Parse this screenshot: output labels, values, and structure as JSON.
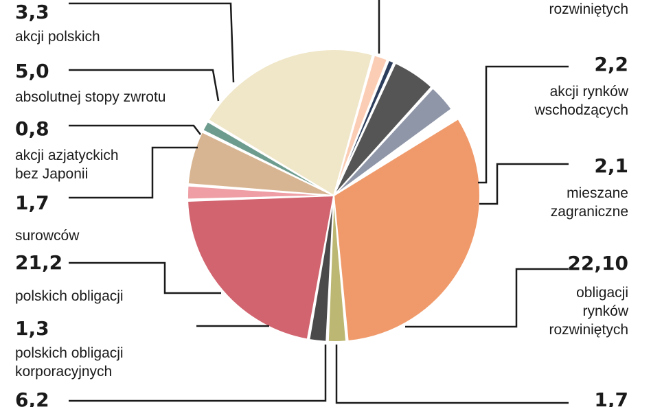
{
  "chart_data": {
    "type": "pie",
    "slices": [
      {
        "value": "",
        "label_lines": [
          "rozwiniętych"
        ],
        "numeric": 33.0,
        "color": "#f09a6b"
      },
      {
        "value": "2,2",
        "label_lines": [
          "akcji rynków",
          "wschodzących"
        ],
        "numeric": 2.2,
        "color": "#bcb772"
      },
      {
        "value": "2,1",
        "label_lines": [
          "mieszane",
          "zagraniczne"
        ],
        "numeric": 2.1,
        "color": "#4a4a4a"
      },
      {
        "value": "22,10",
        "label_lines": [
          "obligacji",
          "rynków",
          "rozwiniętych"
        ],
        "numeric": 22.1,
        "color": "#d1646f"
      },
      {
        "value": "1,7",
        "label_lines": [],
        "numeric": 1.7,
        "color": "#ee9ea4"
      },
      {
        "value": "6,2",
        "label_lines": [],
        "numeric": 6.2,
        "color": "#d8b592"
      },
      {
        "value": "1,3",
        "label_lines": [
          "polskich obligacji",
          "korporacyjnych"
        ],
        "numeric": 1.3,
        "color": "#6d9c8e"
      },
      {
        "value": "21,2",
        "label_lines": [
          "polskich obligacji"
        ],
        "numeric": 21.2,
        "color": "#f0e6c8"
      },
      {
        "value": "1,7",
        "label_lines": [
          "surowców"
        ],
        "numeric": 1.7,
        "color": "#fbcdb4"
      },
      {
        "value": "0,8",
        "label_lines": [
          "akcji azjatyckich",
          "bez Japonii"
        ],
        "numeric": 0.8,
        "color": "#2d3e5c"
      },
      {
        "value": "5,0",
        "label_lines": [
          "absolutnej stopy zwrotu"
        ],
        "numeric": 5.0,
        "color": "#555555"
      },
      {
        "value": "3,3",
        "label_lines": [
          "akcji polskich"
        ],
        "numeric": 3.3,
        "color": "#8f96a8"
      }
    ]
  }
}
